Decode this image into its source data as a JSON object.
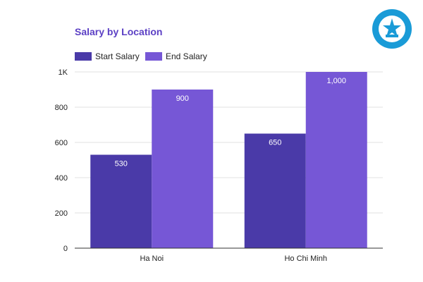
{
  "chart_data": {
    "type": "bar",
    "title": "Salary by Location",
    "xlabel": "",
    "ylabel": "",
    "categories": [
      "Ha Noi",
      "Ho Chi Minh"
    ],
    "series": [
      {
        "name": "Start Salary",
        "values": [
          530,
          650
        ],
        "color": "#4a3aa8",
        "labels": [
          "530",
          "650"
        ]
      },
      {
        "name": "End Salary",
        "values": [
          900,
          1000
        ],
        "color": "#7657d6",
        "labels": [
          "900",
          "1,000"
        ]
      }
    ],
    "ylim": [
      0,
      1000
    ],
    "yticks": [
      0,
      200,
      400,
      600,
      800,
      1000
    ],
    "ytick_labels": [
      "0",
      "200",
      "400",
      "600",
      "800",
      "1K"
    ],
    "grid": true,
    "legend_position": "top-left"
  },
  "logo": {
    "name": "university-seal",
    "color": "#1a9bd7"
  }
}
